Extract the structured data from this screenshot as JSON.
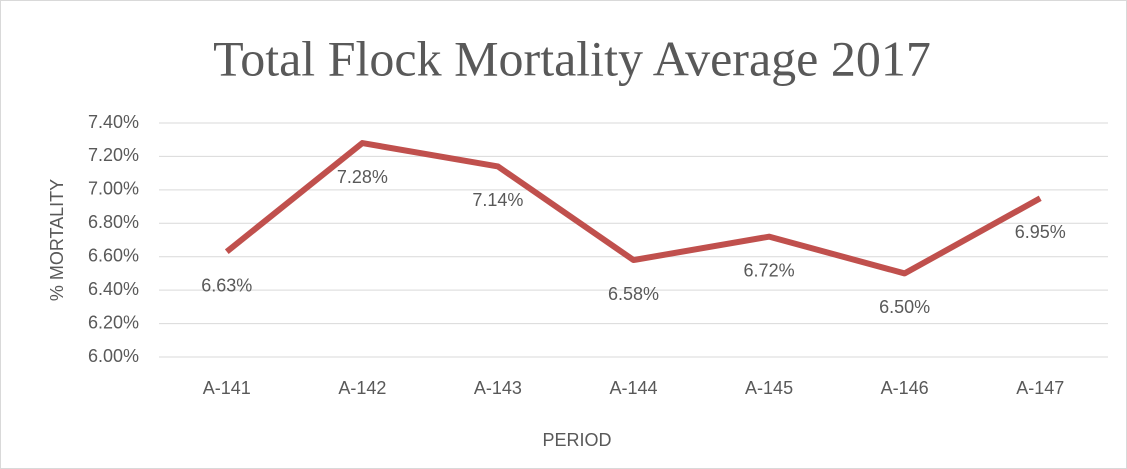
{
  "chart_data": {
    "type": "line",
    "title": "Total Flock Mortality Average 2017",
    "x_label": "PERIOD",
    "y_label": "% MORTALITY",
    "categories": [
      "A-141",
      "A-142",
      "A-143",
      "A-144",
      "A-145",
      "A-146",
      "A-147"
    ],
    "series": [
      {
        "name": "Total Flock Mortality Average",
        "color": "#c0504d",
        "values": [
          6.63,
          7.28,
          7.14,
          6.58,
          6.72,
          6.5,
          6.95
        ],
        "value_labels": [
          "6.63%",
          "7.28%",
          "7.14%",
          "6.58%",
          "6.72%",
          "6.50%",
          "6.95%"
        ]
      }
    ],
    "ylim": [
      6.0,
      7.4
    ],
    "yticks": [
      {
        "value": 6.0,
        "label": "6.00%"
      },
      {
        "value": 6.2,
        "label": "6.20%"
      },
      {
        "value": 6.4,
        "label": "6.40%"
      },
      {
        "value": 6.6,
        "label": "6.60%"
      },
      {
        "value": 6.8,
        "label": "6.80%"
      },
      {
        "value": 7.0,
        "label": "7.00%"
      },
      {
        "value": 7.2,
        "label": "7.20%"
      },
      {
        "value": 7.4,
        "label": "7.40%"
      }
    ],
    "grid": true
  }
}
